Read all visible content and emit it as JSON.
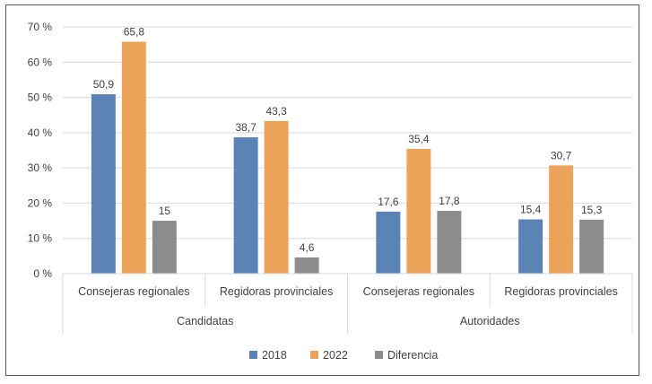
{
  "chart_data": {
    "type": "bar",
    "title": "",
    "xlabel": "",
    "ylabel": "",
    "ylim": [
      0,
      70
    ],
    "y_ticks": [
      0,
      10,
      20,
      30,
      40,
      50,
      60,
      70
    ],
    "y_tick_labels": [
      "0 %",
      "10 %",
      "20 %",
      "30 %",
      "40 %",
      "50 %",
      "60 %",
      "70 %"
    ],
    "grid": true,
    "legend_position": "bottom",
    "groups": [
      {
        "label": "Candidatas",
        "categories": [
          "Consejeras regionales",
          "Regidoras provinciales"
        ]
      },
      {
        "label": "Autoridades",
        "categories": [
          "Consejeras regionales",
          "Regidoras provinciales"
        ]
      }
    ],
    "categories": [
      "Consejeras regionales",
      "Regidoras provinciales",
      "Consejeras regionales",
      "Regidoras provinciales"
    ],
    "series": [
      {
        "name": "2018",
        "color": "#5b83b5",
        "values": [
          50.9,
          38.7,
          17.6,
          15.4
        ],
        "labels": [
          "50,9",
          "38,7",
          "17,6",
          "15,4"
        ]
      },
      {
        "name": "2022",
        "color": "#eba35a",
        "values": [
          65.8,
          43.3,
          35.4,
          30.7
        ],
        "labels": [
          "65,8",
          "43,3",
          "35,4",
          "30,7"
        ]
      },
      {
        "name": "Diferencia",
        "color": "#8c8c8c",
        "values": [
          15,
          4.6,
          17.8,
          15.3
        ],
        "labels": [
          "15",
          "4,6",
          "17,8",
          "15,3"
        ]
      }
    ]
  }
}
